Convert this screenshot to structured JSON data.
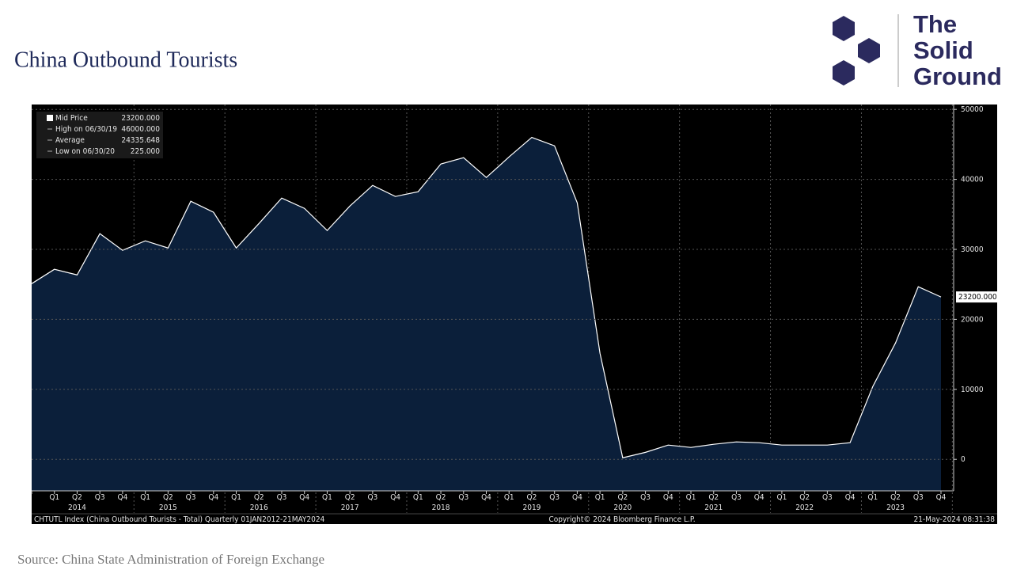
{
  "header": {
    "title": "China Outbound Tourists",
    "logo": [
      "The",
      "Solid",
      "Ground"
    ]
  },
  "chart_data": {
    "type": "area",
    "categories": [
      null,
      "Q1",
      "Q2",
      "Q3",
      "Q4",
      "Q1",
      "Q2",
      "Q3",
      "Q4",
      "Q1",
      "Q2",
      "Q3",
      "Q4",
      "Q1",
      "Q2",
      "Q3",
      "Q4",
      "Q1",
      "Q2",
      "Q3",
      "Q4",
      "Q1",
      "Q2",
      "Q3",
      "Q4",
      "Q1",
      "Q2",
      "Q3",
      "Q4",
      "Q1",
      "Q2",
      "Q3",
      "Q4",
      "Q1",
      "Q2",
      "Q3",
      "Q4",
      "Q1",
      "Q2",
      "Q3",
      "Q4"
    ],
    "years": [
      "2014",
      "2015",
      "2016",
      "2017",
      "2018",
      "2019",
      "2020",
      "2021",
      "2022",
      "2023"
    ],
    "series": [
      {
        "name": "Mid Price",
        "color": "#ffffff",
        "fill": "#0b1f3a",
        "values": [
          25100,
          27150,
          26350,
          32240,
          29860,
          31220,
          30200,
          36880,
          35300,
          30200,
          33700,
          37330,
          35860,
          32700,
          36200,
          39140,
          37560,
          38240,
          42200,
          43100,
          40270,
          43210,
          46000,
          44800,
          36650,
          15160,
          225,
          1000,
          2040,
          1700,
          2150,
          2490,
          2380,
          2040,
          2040,
          2040,
          2380,
          10400,
          16630,
          24660,
          23200
        ]
      }
    ],
    "ylim": [
      -4500,
      50700
    ],
    "yticks": [
      0,
      10000,
      20000,
      30000,
      40000,
      50000
    ],
    "grid": true,
    "stats": [
      {
        "name": "Mid Price",
        "label": "23200.000"
      },
      {
        "name": "High on 06/30/19",
        "label": "46000.000"
      },
      {
        "name": "Average",
        "label": "24335.648"
      },
      {
        "name": "Low on 06/30/20",
        "label": "225.000"
      }
    ],
    "last_value_label": "23200.000",
    "footer": [
      "CHTUTL Index (China Outbound Tourists - Total)  Quarterly 01JAN2012-21MAY2024",
      "Copyright© 2024 Bloomberg Finance L.P.",
      "21-May-2024 08:31:38"
    ]
  },
  "source": "Source: China State Administration of Foreign Exchange"
}
